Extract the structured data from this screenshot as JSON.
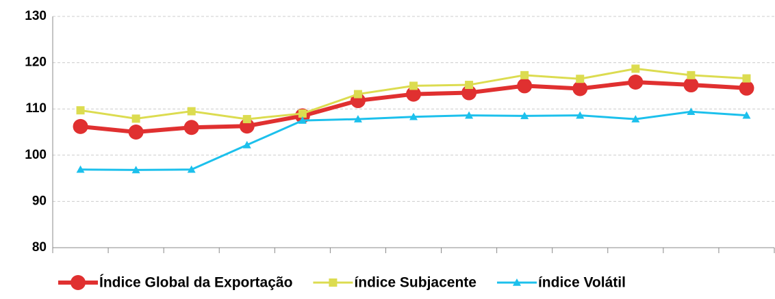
{
  "chart_data": {
    "type": "line",
    "categories": [
      null,
      null,
      null,
      null,
      null,
      null,
      null,
      null,
      null,
      null,
      null,
      null,
      null
    ],
    "series": [
      {
        "name": "Índice Global da Exportação",
        "color": "#e03030",
        "marker": "circle",
        "values": [
          106.2,
          105.0,
          106.0,
          106.3,
          108.5,
          111.8,
          113.2,
          113.5,
          115.0,
          114.4,
          115.8,
          115.2,
          114.5
        ]
      },
      {
        "name": "índice Subjacente",
        "color": "#dcdc50",
        "marker": "square",
        "values": [
          109.7,
          107.9,
          109.5,
          107.8,
          109.0,
          113.2,
          115.0,
          115.2,
          117.3,
          116.5,
          118.7,
          117.3,
          116.6
        ]
      },
      {
        "name": "índice Volátil",
        "color": "#1cc0ec",
        "marker": "triangle",
        "values": [
          96.9,
          96.8,
          96.9,
          102.2,
          107.5,
          107.8,
          108.3,
          108.6,
          108.5,
          108.6,
          107.8,
          109.4,
          108.6
        ]
      }
    ],
    "ylim": [
      80,
      130
    ],
    "yticks": [
      80,
      90,
      100,
      110,
      120,
      130
    ],
    "grid": true,
    "legend": "bottom"
  }
}
